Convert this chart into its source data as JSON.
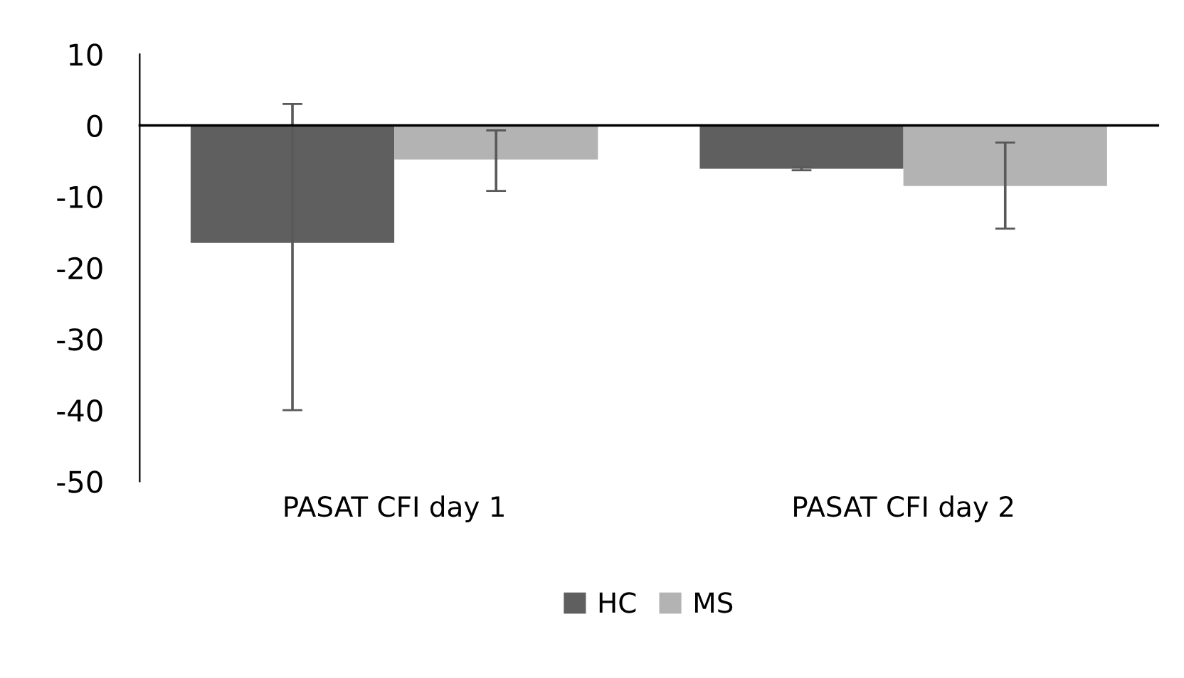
{
  "chart_data": {
    "type": "bar",
    "categories": [
      "PASAT CFI day 1",
      "PASAT CFI day 2"
    ],
    "series": [
      {
        "name": "HC",
        "color": "#5f5f5f",
        "values": [
          -16.5,
          -6.1
        ],
        "errors": [
          [
            -40,
            3
          ],
          [
            -6.3,
            -5.9
          ]
        ]
      },
      {
        "name": "MS",
        "color": "#b3b3b3",
        "values": [
          -4.8,
          -8.5
        ],
        "errors": [
          [
            -9.2,
            -0.7
          ],
          [
            -14.5,
            -2.4
          ]
        ]
      }
    ],
    "ylim": [
      -50,
      10
    ],
    "yticks": [
      -50,
      -40,
      -30,
      -20,
      -10,
      0,
      10
    ],
    "legend": "bottom"
  }
}
